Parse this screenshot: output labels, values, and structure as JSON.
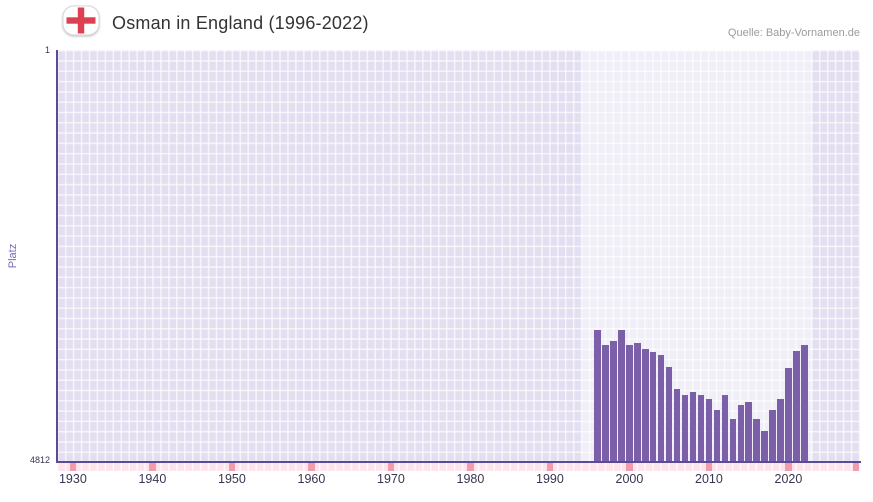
{
  "header": {
    "title": "Osman in England (1996-2022)",
    "source": "Quelle: Baby-Vornamen.de"
  },
  "axes": {
    "y_label": "Platz",
    "y_top": "1",
    "y_bottom": "4812"
  },
  "colors": {
    "bar": "#7c5fa9",
    "plot_background": "#e4dff0",
    "highlight": "rgba(255,255,255,0.46)",
    "axis_line": "#5d4a96",
    "strip_base": "#fbe4eb",
    "strip_marker": "#f09cab",
    "flag_cross_red": "#dd4050",
    "tick_text": "#3a3550",
    "ylabel_text": "#7668b8"
  },
  "chart_data": {
    "type": "bar",
    "title": "Osman in England (1996-2022)",
    "source": "Quelle: Baby-Vornamen.de",
    "xlabel": "",
    "ylabel": "Platz",
    "values_are_rank": true,
    "y_axis": {
      "min": 1,
      "max": 4812,
      "inverted": true,
      "tick_labels": [
        "1",
        "4812"
      ]
    },
    "x_range": [
      1928,
      2029
    ],
    "x_ticks": [
      1930,
      1940,
      1950,
      1960,
      1970,
      1980,
      1990,
      2000,
      2010,
      2020
    ],
    "highlight_range": [
      1994,
      2023
    ],
    "grid": true,
    "legend": false,
    "categories": [
      1996,
      1997,
      1998,
      1999,
      2000,
      2001,
      2002,
      2003,
      2004,
      2005,
      2006,
      2007,
      2008,
      2009,
      2010,
      2011,
      2012,
      2013,
      2014,
      2015,
      2016,
      2017,
      2018,
      2019,
      2020,
      2021,
      2022
    ],
    "values": [
      3270,
      3440,
      3400,
      3270,
      3450,
      3420,
      3490,
      3530,
      3560,
      3700,
      3960,
      4030,
      3990,
      4030,
      4080,
      4200,
      4030,
      4310,
      4150,
      4110,
      4310,
      4450,
      4200,
      4080,
      3720,
      3510,
      3450
    ],
    "strip_edge_marker": true
  }
}
